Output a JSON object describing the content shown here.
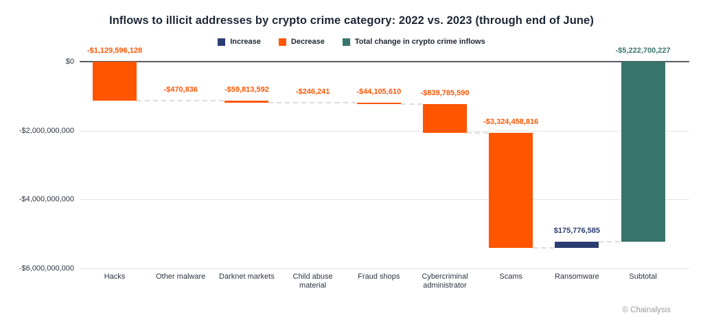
{
  "header": {
    "title": "Inflows to illicit addresses by crypto crime category: 2022 vs. 2023 (through end of June)"
  },
  "legend": {
    "items": [
      {
        "label": "Increase",
        "color": "#2b3c72"
      },
      {
        "label": "Decrease",
        "color": "#ff5500"
      },
      {
        "label": "Total change in crypto crime inflows",
        "color": "#38756a"
      }
    ]
  },
  "chart_data": {
    "type": "bar",
    "subtype": "waterfall",
    "title": "Inflows to illicit addresses by crypto crime category: 2022 vs. 2023 (through end of June)",
    "categories": [
      "Hacks",
      "Other malware",
      "Darknet markets",
      "Child abuse material",
      "Fraud shops",
      "Cybercriminal administrator",
      "Scams",
      "Ransomware",
      "Subtotal"
    ],
    "values": [
      -1129596128,
      -470836,
      -59813592,
      -246241,
      -44105610,
      -839785590,
      -3324458816,
      175776585,
      -5222700227
    ],
    "display_labels": [
      "-$1,129,596,128",
      "-$470,836",
      "-$59,813,592",
      "-$246,241",
      "-$44,105,610",
      "-$839,785,590",
      "-$3,324,458,816",
      "$175,776,585",
      "-$5,222,700,227"
    ],
    "bar_types": [
      "decrease",
      "decrease",
      "decrease",
      "decrease",
      "decrease",
      "decrease",
      "decrease",
      "increase",
      "total"
    ],
    "colors": {
      "increase": "#2b3c72",
      "decrease": "#ff5500",
      "total": "#38756a"
    },
    "ylabel": "",
    "xlabel": "",
    "ylim": [
      -6000000000,
      0
    ],
    "yticks": [
      {
        "value": 0,
        "label": "$0"
      },
      {
        "value": -2000000000,
        "label": "-$2,000,000,000"
      },
      {
        "value": -4000000000,
        "label": "-$4,000,000,000"
      },
      {
        "value": -6000000000,
        "label": "-$6,000,000,000"
      }
    ],
    "grid": true,
    "legend_position": "top"
  },
  "footer": {
    "credit": "© Chainalysis"
  }
}
